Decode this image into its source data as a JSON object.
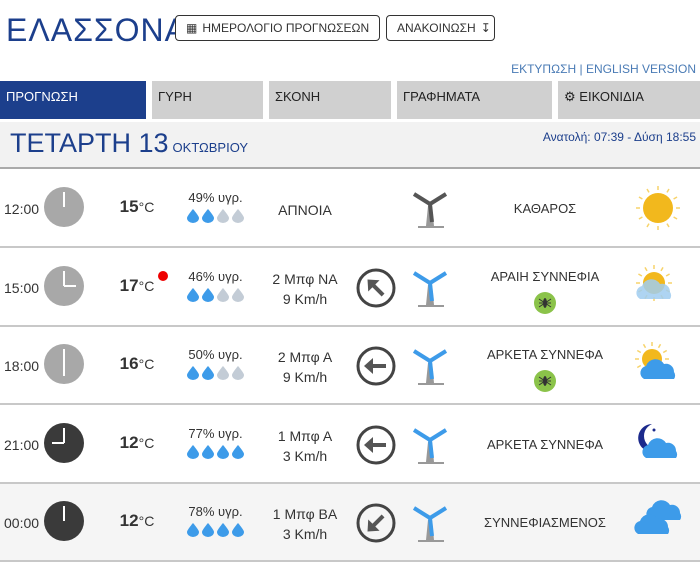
{
  "header": {
    "city": "ΕΛΑΣΣΟΝΑ",
    "calendar_button": "ΗΜΕΡΟΛΟΓΙΟ ΠΡΟΓΝΩΣΕΩΝ",
    "announcement_button": "ΑΝΑΚΟΙΝΩΣΗ",
    "print_link": "ΕΚΤΥΠΩΣΗ",
    "separator": "|",
    "english_link": "ENGLISH VERSION"
  },
  "tabs": [
    {
      "label": "ΠΡΟΓΝΩΣΗ",
      "active": true
    },
    {
      "label": "ΓΥΡΗ"
    },
    {
      "label": "ΣΚΟΝΗ"
    },
    {
      "label": "ΓΡΑΦΗΜΑΤΑ"
    },
    {
      "label": "ΕΙΚΟΝΙΔΙΑ",
      "icon": "gear-icon"
    }
  ],
  "day": {
    "weekday_date": "ΤΕΤΑΡΤΗ 13",
    "month": "ΟΚΤΩΒΡΙΟΥ",
    "sun_times": "Ανατολή: 07:39  - Δύση 18:55"
  },
  "colors": {
    "brand": "#1c3f8c",
    "drop_full": "#3d9be9",
    "drop_empty": "#c3ccd6",
    "alert": "#e00000"
  },
  "forecast": [
    {
      "time": "12:00",
      "night": false,
      "temp": "15",
      "unit": "°C",
      "alert": false,
      "humidity": "49% υγρ.",
      "drops": 2,
      "wind": "ΑΠΝΟΙΑ",
      "wind_speed": "",
      "wind_dir": "",
      "condition": "ΚΑΘΑΡΟΣ",
      "insect": false,
      "icon": "sun"
    },
    {
      "time": "15:00",
      "night": false,
      "temp": "17",
      "unit": "°C",
      "alert": true,
      "humidity": "46% υγρ.",
      "drops": 2,
      "wind": "2 Μπφ ΝΑ",
      "wind_speed": "9 Km/h",
      "wind_dir": "ΝΑ",
      "condition": "ΑΡΑΙΗ ΣΥΝΝΕΦΙΑ",
      "insect": true,
      "icon": "sun-light-cloud"
    },
    {
      "time": "18:00",
      "night": false,
      "temp": "16",
      "unit": "°C",
      "alert": false,
      "humidity": "50% υγρ.",
      "drops": 2,
      "wind": "2 Μπφ Α",
      "wind_speed": "9 Km/h",
      "wind_dir": "Α",
      "condition": "ΑΡΚΕΤΑ ΣΥΝΝΕΦΑ",
      "insect": true,
      "icon": "sun-cloud"
    },
    {
      "time": "21:00",
      "night": true,
      "temp": "12",
      "unit": "°C",
      "alert": false,
      "humidity": "77% υγρ.",
      "drops": 4,
      "wind": "1 Μπφ Α",
      "wind_speed": "3 Km/h",
      "wind_dir": "Α",
      "condition": "ΑΡΚΕΤΑ ΣΥΝΝΕΦΑ",
      "insect": false,
      "icon": "moon-cloud"
    },
    {
      "time": "00:00",
      "night": true,
      "temp": "12",
      "unit": "°C",
      "alert": false,
      "humidity": "78% υγρ.",
      "drops": 4,
      "wind": "1 Μπφ ΒΑ",
      "wind_speed": "3 Km/h",
      "wind_dir": "ΒΑ",
      "condition": "ΣΥΝΝΕΦΙΑΣΜΕΝΟΣ",
      "insect": false,
      "icon": "cloud"
    }
  ]
}
